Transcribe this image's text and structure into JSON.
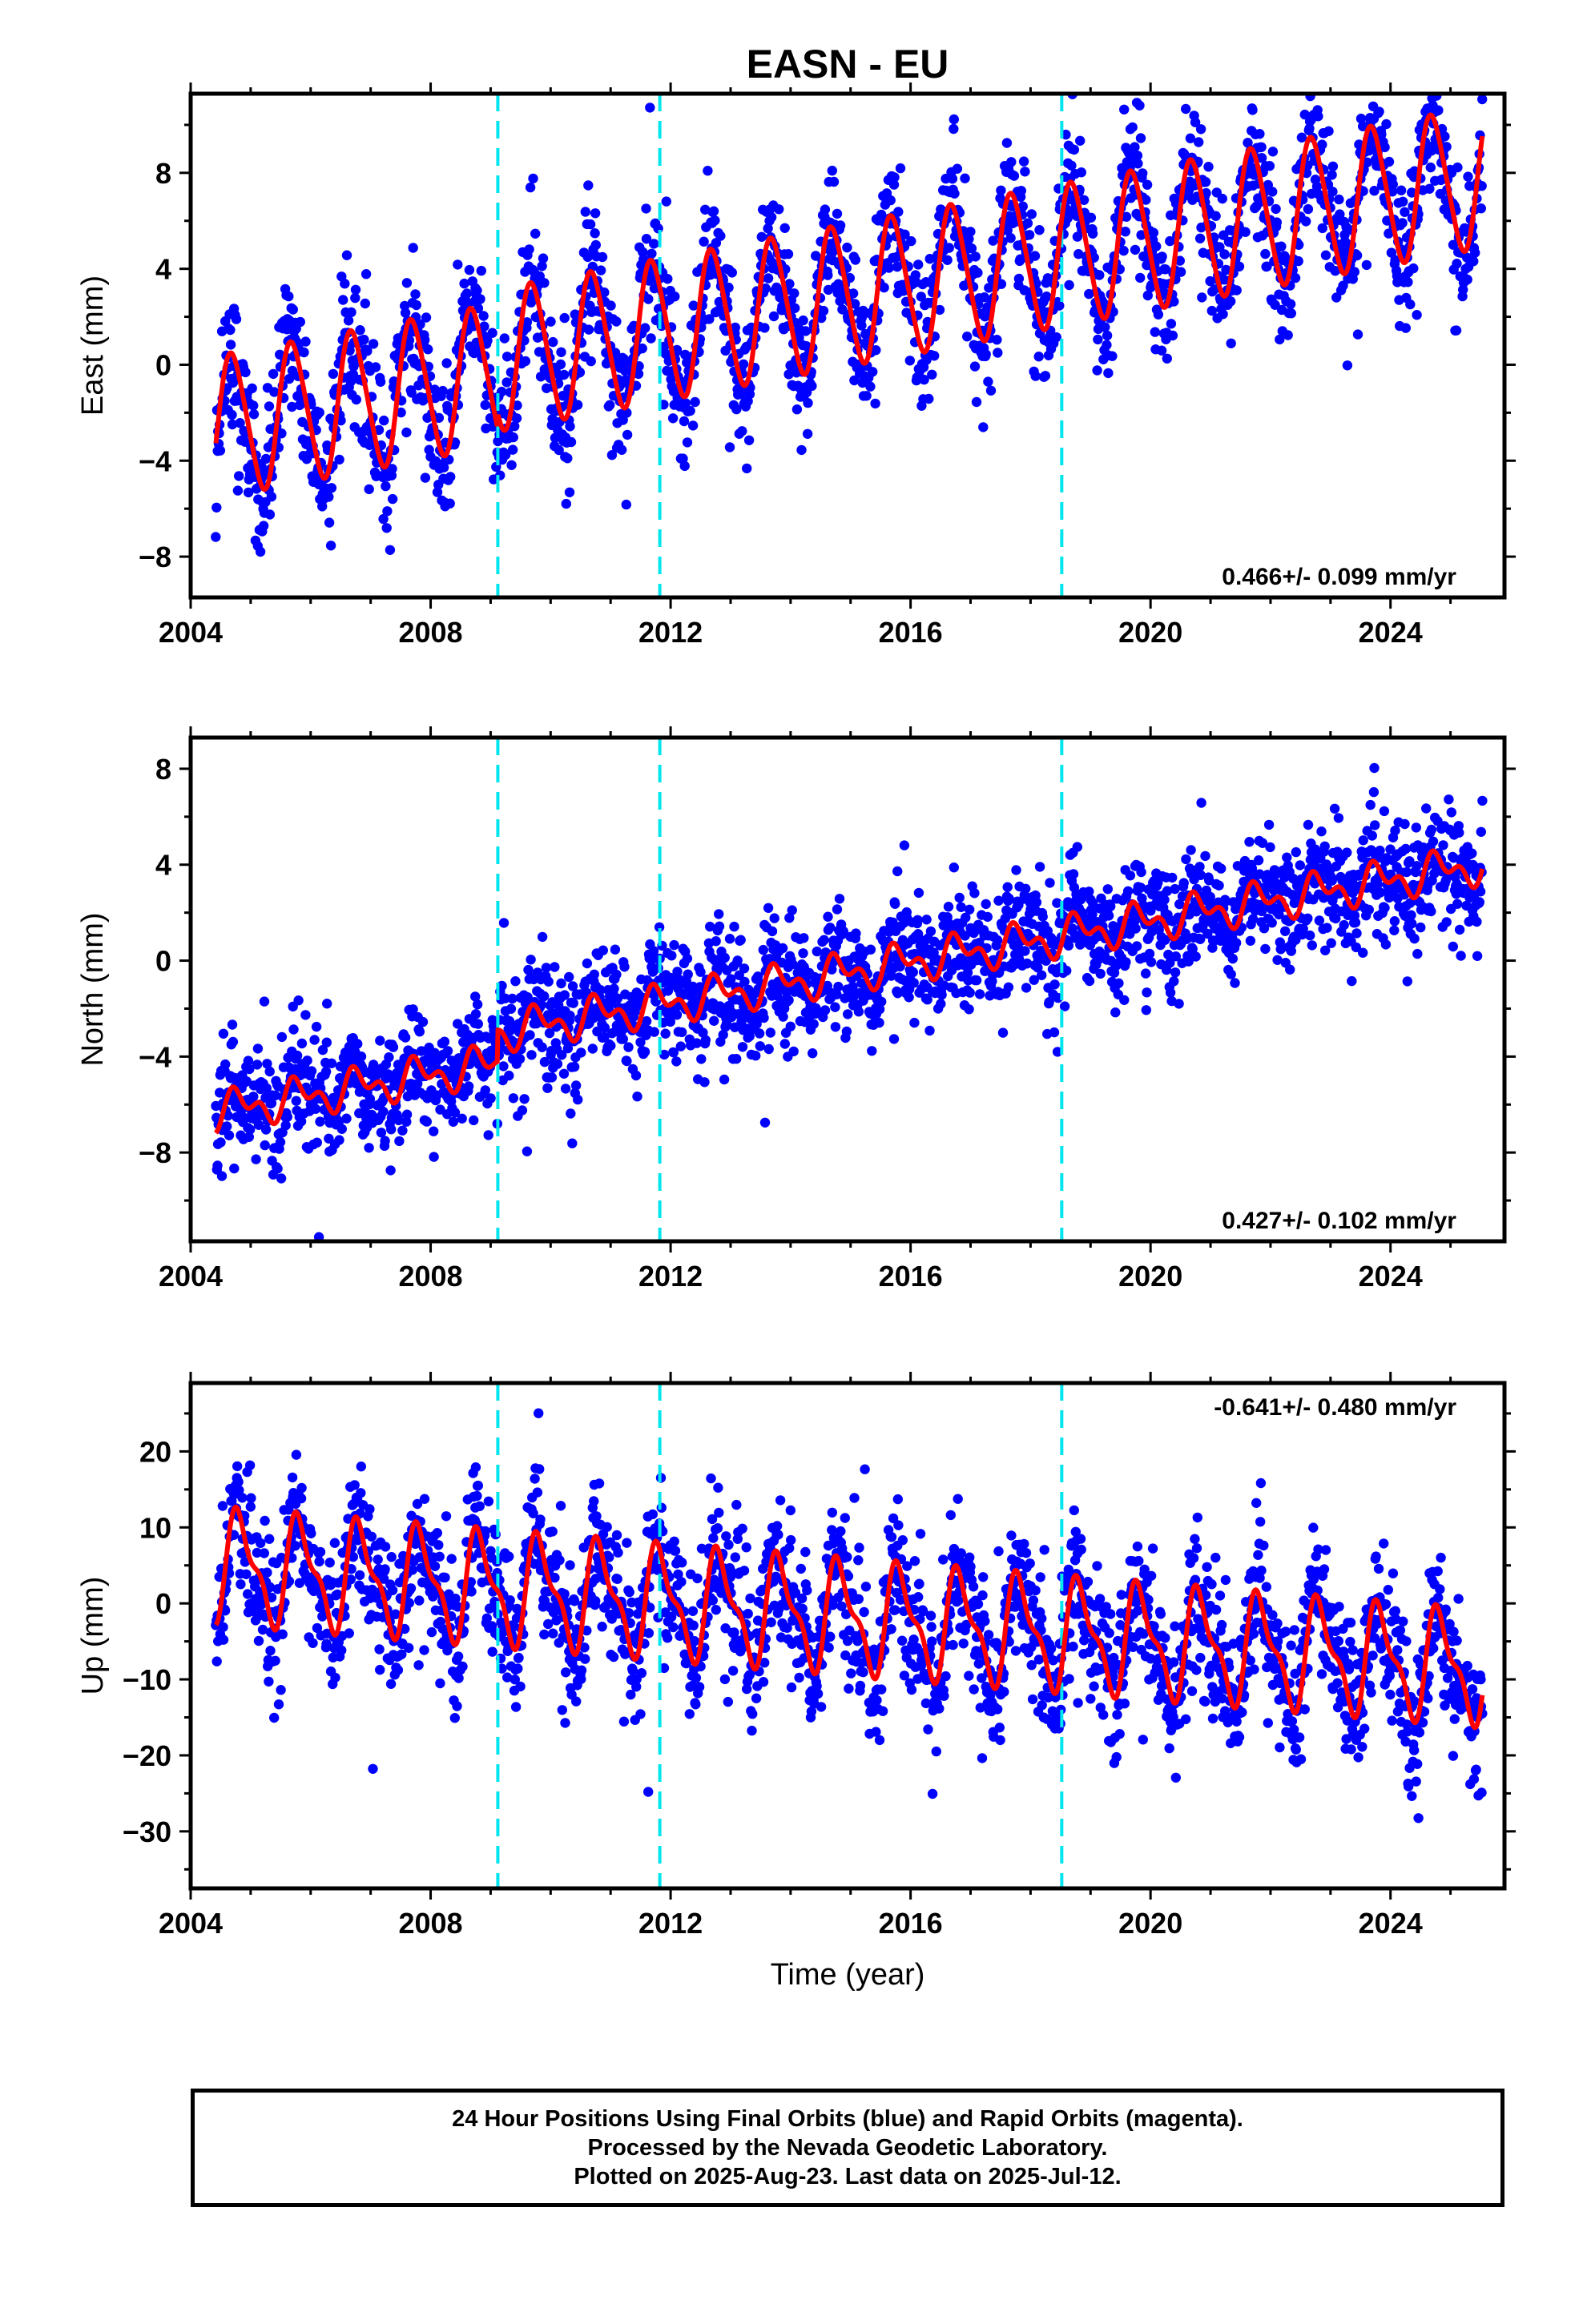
{
  "chart_data": {
    "title": "EASN - EU",
    "xlabel": "Time (year)",
    "xlim": [
      2004.0,
      2025.9
    ],
    "x_ticks": [
      "2004",
      "2008",
      "2012",
      "2016",
      "2020",
      "2024"
    ],
    "equipment_change_epochs": [
      2009.12,
      2011.82,
      2018.52
    ],
    "colors": {
      "observations": "#0000ff",
      "model": "#ff0000",
      "offsets": "#00e5ee"
    },
    "data_span": [
      2004.42,
      2025.53
    ],
    "panels": [
      {
        "name": "east",
        "ylabel": "East (mm)",
        "ylim": [
          -9.7,
          11.3
        ],
        "y_ticks": [
          -8,
          -4,
          0,
          4,
          8
        ],
        "y_tick_labels": [
          "−8",
          "−4",
          "0",
          "4",
          "8"
        ],
        "rate_label": "0.466+/- 0.099 mm/yr",
        "rate_position": "bottom-right",
        "model": {
          "velocity_mm_per_yr": 0.466,
          "ref_epoch": 2004.42,
          "ref_value": -2.6,
          "annual_amplitude": 2.9,
          "annual_phase_fraction": 0.45,
          "semiannual_amplitude": 0.35,
          "offsets": [
            {
              "epoch": 2009.12,
              "jump": 0.6
            }
          ]
        },
        "scatter": {
          "sigma": 1.4,
          "count": 2300
        }
      },
      {
        "name": "north",
        "ylabel": "North (mm)",
        "ylim": [
          -11.7,
          9.3
        ],
        "y_ticks": [
          -8,
          -4,
          0,
          4,
          8
        ],
        "y_tick_labels": [
          "−8",
          "−4",
          "0",
          "4",
          "8"
        ],
        "rate_label": "0.427+/- 0.102 mm/yr",
        "rate_position": "bottom-right",
        "model": {
          "velocity_mm_per_yr": 0.427,
          "ref_epoch": 2004.42,
          "ref_value": -6.3,
          "annual_amplitude": 0.6,
          "annual_phase_fraction": 0.55,
          "semiannual_amplitude": 0.45,
          "offsets": [
            {
              "epoch": 2009.12,
              "jump": 1.3
            }
          ]
        },
        "scatter": {
          "sigma": 1.2,
          "count": 2300
        }
      },
      {
        "name": "up",
        "ylabel": "Up (mm)",
        "ylim": [
          -37.5,
          29.0
        ],
        "y_ticks": [
          -30,
          -20,
          -10,
          0,
          10,
          20
        ],
        "y_tick_labels": [
          "−30",
          "−20",
          "−10",
          "0",
          "10",
          "20"
        ],
        "rate_label": "-0.641+/- 0.480 mm/yr",
        "rate_position": "top-right",
        "model": {
          "velocity_mm_per_yr": -0.641,
          "ref_epoch": 2004.42,
          "ref_value": 5.0,
          "annual_amplitude": 6.5,
          "annual_phase_fraction": 0.58,
          "semiannual_amplitude": 2.6,
          "offsets": []
        },
        "scatter": {
          "sigma": 4.5,
          "count": 2300
        }
      }
    ]
  },
  "caption": {
    "line1": "24 Hour Positions Using Final Orbits (blue) and Rapid Orbits (magenta).",
    "line2": "Processed by the Nevada Geodetic Laboratory.",
    "line3": "Plotted on 2025-Aug-23. Last data on 2025-Jul-12."
  }
}
